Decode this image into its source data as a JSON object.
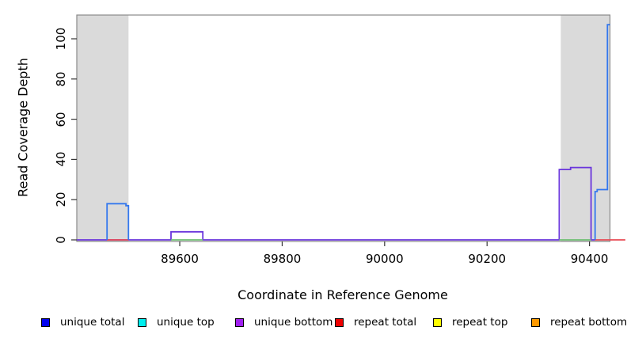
{
  "chart_data": {
    "type": "line",
    "subtype": "step-coverage",
    "title": "",
    "xlabel": "Coordinate in Reference Genome",
    "ylabel": "Read Coverage Depth",
    "xlim": [
      89399,
      90440
    ],
    "ylim": [
      0,
      112
    ],
    "x_ticks": [
      89600,
      89800,
      90000,
      90200,
      90400
    ],
    "y_ticks": [
      0,
      20,
      40,
      60,
      80,
      100
    ],
    "grid": false,
    "plot_border_color": "#8A8A8A",
    "shaded_regions": [
      {
        "name": "left-gray-region",
        "x0": 89399,
        "x1": 89500,
        "color": "#DADADA"
      },
      {
        "name": "right-gray-region",
        "x0": 90344,
        "x1": 90440,
        "color": "#DADADA"
      }
    ],
    "series": [
      {
        "name": "unique bottom",
        "color": "#6A35DC",
        "width": 1.8,
        "points": [
          [
            89399,
            0
          ],
          [
            89583,
            0
          ],
          [
            89583,
            4
          ],
          [
            89645,
            4
          ],
          [
            89645,
            0
          ],
          [
            90341,
            0
          ],
          [
            90341,
            35
          ],
          [
            90363,
            35
          ],
          [
            90363,
            36
          ],
          [
            90403,
            36
          ],
          [
            90403,
            0
          ],
          [
            90411,
            0
          ]
        ]
      },
      {
        "name": "unique top (green baseline segment)",
        "color": "#6FBF73",
        "width": 1.8,
        "points": [
          [
            89583,
            0
          ],
          [
            89645,
            0
          ]
        ]
      },
      {
        "name": "unique top (green baseline segment right)",
        "color": "#6FBF73",
        "width": 1.8,
        "points": [
          [
            90341,
            0
          ],
          [
            90403,
            0
          ]
        ]
      },
      {
        "name": "repeat total (left segment)",
        "color": "#E84B55",
        "width": 1.8,
        "points": [
          [
            89458,
            0
          ],
          [
            89500,
            0
          ]
        ]
      },
      {
        "name": "repeat total (right segment)",
        "color": "#E84B55",
        "width": 1.8,
        "points": [
          [
            90411,
            0
          ],
          [
            90470,
            0
          ]
        ]
      },
      {
        "name": "unique total (left step)",
        "color": "#3377EE",
        "width": 1.8,
        "points": [
          [
            89458,
            0
          ],
          [
            89458,
            18
          ],
          [
            89495,
            18
          ],
          [
            89495,
            17
          ],
          [
            89500,
            17
          ],
          [
            89500,
            0
          ]
        ]
      },
      {
        "name": "unique total (right steps)",
        "color": "#3377EE",
        "width": 1.8,
        "points": [
          [
            90411,
            0
          ],
          [
            90411,
            24
          ],
          [
            90415,
            24
          ],
          [
            90415,
            25
          ],
          [
            90435,
            25
          ],
          [
            90435,
            107
          ],
          [
            90440,
            107
          ]
        ]
      }
    ],
    "legend_position": "bottom"
  },
  "legend": {
    "items": [
      {
        "label": "unique total",
        "fill": "#0000EE"
      },
      {
        "label": "unique top",
        "fill": "#00EEEE"
      },
      {
        "label": "unique bottom",
        "fill": "#A020F0"
      },
      {
        "label": "repeat total",
        "fill": "#EE0000"
      },
      {
        "label": "repeat top",
        "fill": "#FFFF00"
      },
      {
        "label": "repeat bottom",
        "fill": "#FF9900"
      }
    ]
  },
  "axes": {
    "x_title": "Coordinate in Reference Genome",
    "y_title": "Read Coverage Depth",
    "x_tick_labels": [
      "89600",
      "89800",
      "90000",
      "90200",
      "90400"
    ],
    "y_tick_labels": [
      "0",
      "20",
      "40",
      "60",
      "80",
      "100"
    ]
  }
}
